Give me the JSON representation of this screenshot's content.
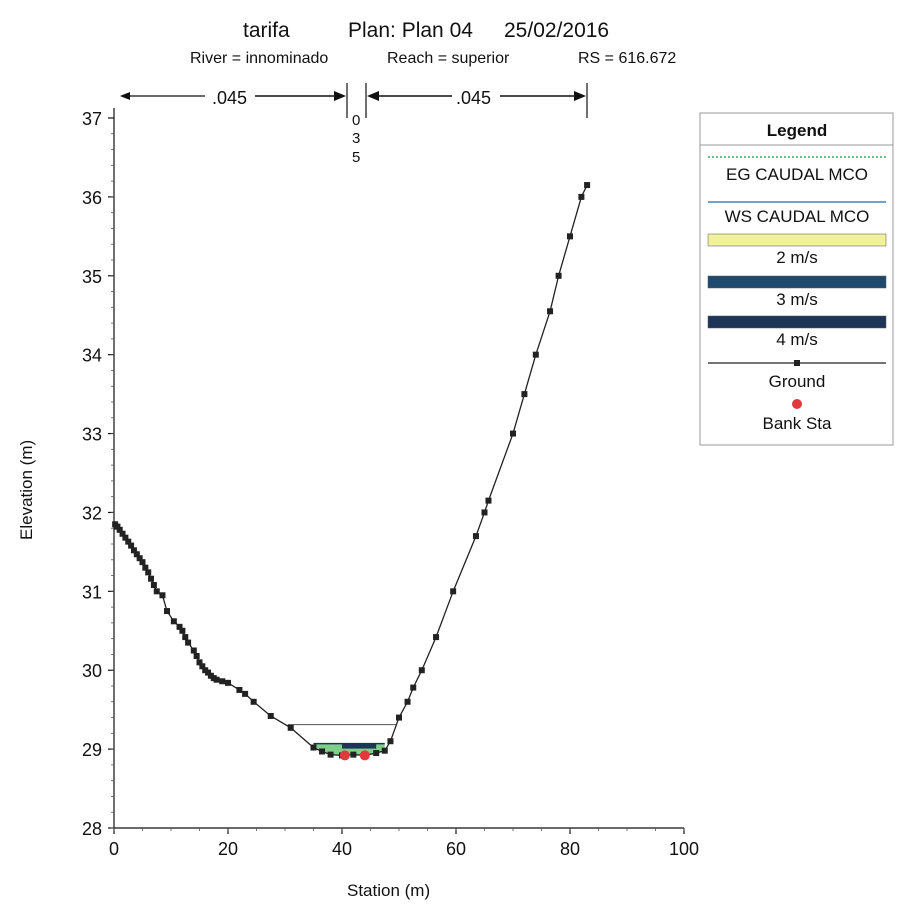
{
  "header": {
    "title_left": "tarifa",
    "title_plan": "Plan: Plan 04",
    "title_date": "25/02/2016",
    "subtitle_river": "River = innominado",
    "subtitle_reach": "Reach = superior",
    "subtitle_rs": "RS = 616.672"
  },
  "mannings": {
    "left_value": ".045",
    "right_value": ".045",
    "channel_chars": [
      "0",
      "3",
      "5"
    ]
  },
  "legend": {
    "title": "Legend",
    "items": [
      {
        "label": "EG CAUDAL MCO",
        "kind": "dotted-line",
        "color": "#6fbf8e"
      },
      {
        "label": "WS CAUDAL MCO",
        "kind": "line",
        "color": "#6fa3c8"
      },
      {
        "label": "2 m/s",
        "kind": "band",
        "color": "#f2f29a"
      },
      {
        "label": "3 m/s",
        "kind": "band",
        "color": "#1f4a6e"
      },
      {
        "label": "4 m/s",
        "kind": "band",
        "color": "#1f3557"
      },
      {
        "label": "Ground",
        "kind": "line-marker",
        "color": "#222222"
      },
      {
        "label": "Bank Sta",
        "kind": "marker",
        "color": "#e23a3a"
      }
    ]
  },
  "colors": {
    "ground": "#222222",
    "bank": "#e23a3a",
    "water_fill": "#7fcf8a",
    "water_line": "#1f3557",
    "eg_line": "#555555"
  },
  "chart_data": {
    "type": "line",
    "title": "tarifa    Plan: Plan 04    25/02/2016",
    "subtitle": "River = innominado   Reach = superior   RS = 616.672",
    "xlabel": "Station (m)",
    "ylabel": "Elevation (m)",
    "xlim": [
      0,
      100
    ],
    "ylim": [
      28,
      37
    ],
    "x_ticks": [
      0,
      20,
      40,
      60,
      80,
      100
    ],
    "y_ticks": [
      28,
      29,
      30,
      31,
      32,
      33,
      34,
      35,
      36,
      37
    ],
    "series": [
      {
        "name": "Ground",
        "x": [
          0.2,
          0.6,
          1.0,
          1.5,
          2.0,
          2.5,
          3.0,
          3.5,
          4.0,
          4.5,
          5.0,
          5.5,
          6.0,
          6.5,
          7.0,
          7.5,
          8.5,
          9.3,
          10.5,
          11.5,
          12.0,
          12.5,
          13.0,
          14.0,
          14.5,
          15.0,
          15.5,
          16.0,
          16.5,
          17.0,
          17.5,
          18.0,
          19.0,
          20.0,
          22.0,
          23.0,
          24.5,
          27.5,
          31.0,
          35.0,
          36.5,
          38.0,
          40.0,
          42.0,
          44.0,
          46.0,
          47.5,
          48.5,
          50.0,
          51.5,
          52.5,
          54.0,
          56.5,
          59.5,
          63.5,
          65.0,
          65.7,
          70.0,
          72.0,
          74.0,
          76.5,
          78.0,
          80.0,
          82.0,
          83.0
        ],
        "y": [
          31.85,
          31.82,
          31.78,
          31.73,
          31.68,
          31.63,
          31.58,
          31.52,
          31.47,
          31.42,
          31.37,
          31.3,
          31.24,
          31.16,
          31.08,
          31.0,
          30.95,
          30.75,
          30.62,
          30.55,
          30.5,
          30.42,
          30.35,
          30.25,
          30.18,
          30.1,
          30.05,
          30.0,
          29.97,
          29.93,
          29.9,
          29.88,
          29.86,
          29.84,
          29.75,
          29.7,
          29.6,
          29.42,
          29.27,
          29.02,
          28.97,
          28.93,
          28.92,
          28.93,
          28.92,
          28.95,
          28.98,
          29.1,
          29.4,
          29.6,
          29.78,
          30.0,
          30.42,
          31.0,
          31.7,
          32.0,
          32.15,
          33.0,
          33.5,
          34.0,
          34.55,
          35.0,
          35.5,
          36.0,
          36.15
        ]
      },
      {
        "name": "EG CAUDAL MCO",
        "x": [
          30.5,
          49.5
        ],
        "y": [
          29.31,
          29.31
        ]
      },
      {
        "name": "WS CAUDAL MCO",
        "x": [
          35.0,
          47.5
        ],
        "y": [
          29.07,
          29.07
        ]
      },
      {
        "name": "Bank Sta",
        "x": [
          40.5,
          44.0
        ],
        "y": [
          28.92,
          28.92
        ]
      }
    ],
    "legend_position": "right",
    "grid": false
  }
}
